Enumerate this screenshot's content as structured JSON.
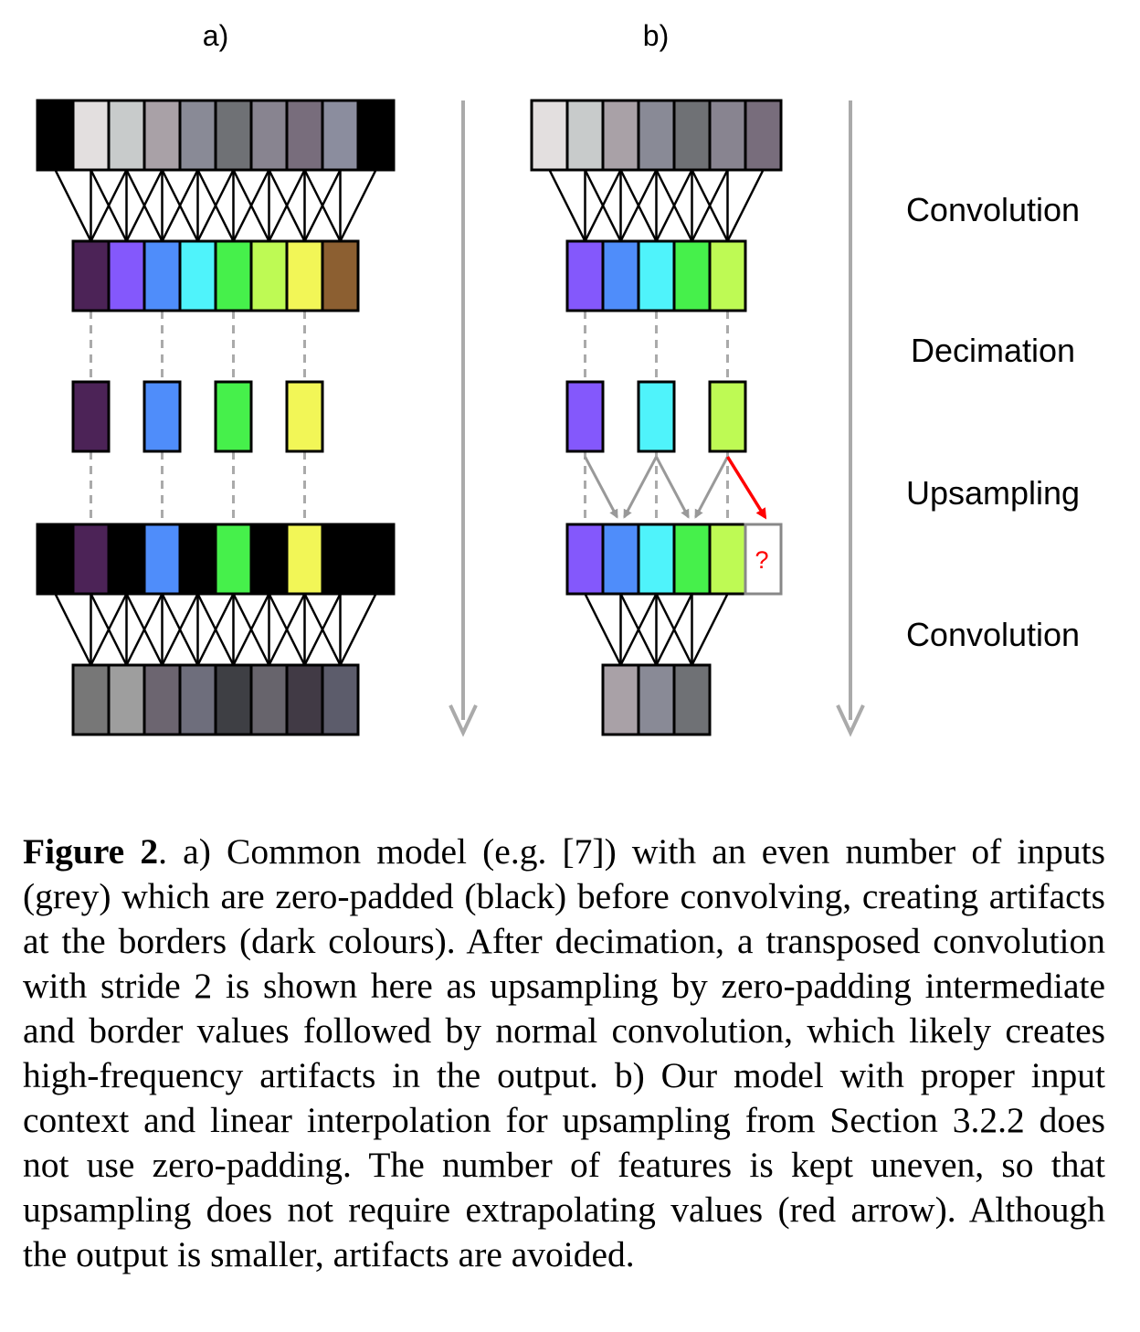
{
  "figure": {
    "panel_a_label": "a)",
    "panel_b_label": "b)",
    "stages": [
      "Convolution",
      "Decimation",
      "Upsampling",
      "Convolution"
    ],
    "extrapolation_mark": "?",
    "panel_a": {
      "input_colors": [
        "#000000",
        "#e3dfdf",
        "#c8cbcb",
        "#a9a1a7",
        "#898a96",
        "#6f7175",
        "#888490",
        "#786d7c",
        "#8b8d9e",
        "#000000"
      ],
      "conv1_colors": [
        "#4c2357",
        "#8458fc",
        "#4f8dfa",
        "#4ff3fb",
        "#46f04b",
        "#befa54",
        "#f2f657",
        "#8c5f31"
      ],
      "decimated_colors": [
        "#4c2357",
        "#4f8dfa",
        "#46f04b",
        "#f2f657"
      ],
      "upsampled_colors": [
        "#000000",
        "#4c2357",
        "#000000",
        "#4f8dfa",
        "#000000",
        "#46f04b",
        "#000000",
        "#f2f657",
        "#000000",
        "#000000"
      ],
      "output_colors": [
        "#777777",
        "#9e9e9e",
        "#6c6570",
        "#6e6e7c",
        "#3e3f44",
        "#67646c",
        "#413a45",
        "#5c5c6b"
      ]
    },
    "panel_b": {
      "input_colors": [
        "#e3dfdf",
        "#c8cbcb",
        "#a9a1a7",
        "#898a96",
        "#6f7175",
        "#888490",
        "#786d7c"
      ],
      "conv1_colors": [
        "#8458fc",
        "#4f8dfa",
        "#4ff3fb",
        "#46f04b",
        "#befa54"
      ],
      "decimated_colors": [
        "#8458fc",
        "#4ff3fb",
        "#befa54"
      ],
      "upsampled_colors": [
        "#8458fc",
        "#4f8dfa",
        "#4ff3fb",
        "#46f04b",
        "#befa54",
        "#ffffff"
      ],
      "output_colors": [
        "#a9a1a7",
        "#898a96",
        "#6f7175"
      ]
    },
    "line_color": "#000000",
    "dash_color": "#aaaaaa",
    "arrow_color": "#999999",
    "extrapolation_color": "#ff0000"
  },
  "caption": {
    "label": "Figure 2",
    "text": ". a) Common model (e.g. [7]) with an even number of inputs (grey) which are zero-padded (black) before convolving, creating artifacts at the borders (dark colours). After decimation, a transposed convolution with stride 2 is shown here as upsam­pling by zero-padding intermediate and border values followed by normal convolution, which likely creates high-frequency arti­facts in the output. b) Our model with proper input context and linear interpolation for upsampling from Section 3.2.2 does not use zero-padding. The number of features is kept uneven, so that upsampling does not require extrapolating values (red arrow). Although the output is smaller, artifacts are avoided."
  }
}
